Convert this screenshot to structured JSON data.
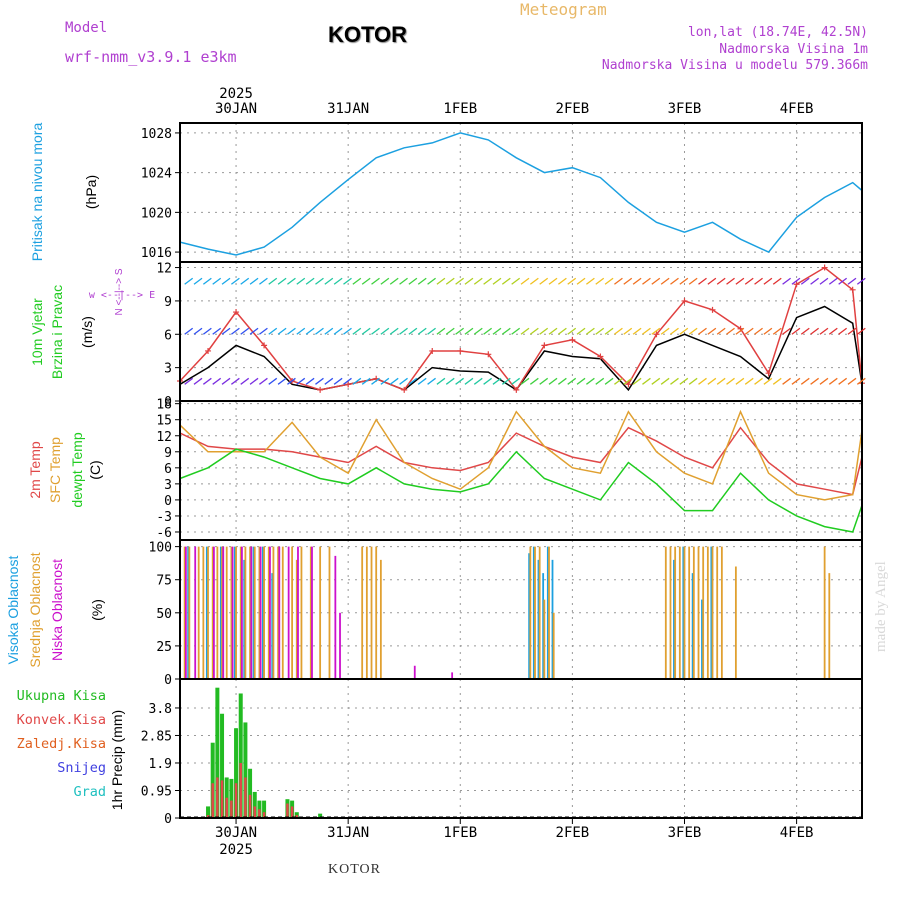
{
  "header": {
    "model_label": "Model",
    "model_name": "wrf-nmm_v3.9.1 e3km",
    "station": "KOTOR",
    "product": "Meteogram",
    "coords": "lon,lat (18.74E, 42.5N)",
    "elevation": "Nadmorska Visina 1m",
    "model_elevation": "Nadmorska Visina u modelu 579.366m",
    "footer_station": "KOTOR",
    "credit": "made by Angel"
  },
  "colors": {
    "pressure": "#1ca0e0",
    "wind_label": "#22cc22",
    "wind_speed": "#000000",
    "gust": "#e04040",
    "temp2m": "#e04848",
    "sfc_temp": "#e0a030",
    "dewpoint": "#20cc20",
    "high_cloud": "#1ca0e0",
    "mid_cloud": "#e0a030",
    "low_cloud": "#cc10cc",
    "total_precip": "#22bb22",
    "conv_precip": "#e04848",
    "frz_precip": "#e06020",
    "snow": "#4040e0",
    "graupel": "#20c0c0",
    "title_orange": "#e8b868",
    "purple": "#b040d0"
  },
  "chart_data": {
    "type": "meteogram",
    "time_axis": {
      "start_hours_before_30jan": 12,
      "end_hours_after_4feb": 14,
      "day_labels": [
        "30JAN",
        "31JAN",
        "1FEB",
        "2FEB",
        "3FEB",
        "4FEB"
      ],
      "year_label": "2025"
    },
    "panels": [
      {
        "id": "pressure",
        "ylabel_title": "Pritisak na nivou mora",
        "ylabel_unit": "(hPa)",
        "ylim": [
          1015,
          1029
        ],
        "yticks": [
          "1016",
          "1020",
          "1024",
          "1028"
        ],
        "series": [
          {
            "name": "MSLP",
            "t": [
              -12,
              -6,
              0,
              6,
              12,
              18,
              24,
              30,
              36,
              42,
              48,
              54,
              60,
              66,
              72,
              78,
              84,
              90,
              96,
              102,
              108,
              114,
              120,
              126,
              132,
              134
            ],
            "v": [
              1017,
              1016.3,
              1015.7,
              1016.5,
              1018.5,
              1021,
              1023.3,
              1025.5,
              1026.5,
              1027,
              1028,
              1027.3,
              1025.5,
              1024,
              1024.5,
              1023.5,
              1021,
              1019,
              1018,
              1019,
              1017.3,
              1016,
              1019.5,
              1021.5,
              1023,
              1022.2
            ]
          }
        ]
      },
      {
        "id": "wind",
        "ylabel_title": "10m Vjetar",
        "ylabel_title2": "Brzina i Pravac",
        "ylabel_unit": "(m/s)",
        "compass": "w <--|--> E",
        "compass_ns": "N <--|--> S",
        "ylim": [
          0,
          12.5
        ],
        "yticks": [
          "0",
          "3",
          "6",
          "9",
          "12"
        ],
        "series": [
          {
            "name": "wind speed",
            "t": [
              -12,
              -6,
              0,
              6,
              12,
              18,
              24,
              30,
              36,
              42,
              48,
              54,
              60,
              66,
              72,
              78,
              84,
              90,
              96,
              102,
              108,
              114,
              120,
              126,
              132,
              134
            ],
            "v": [
              1.5,
              3,
              5,
              4,
              1.5,
              1,
              1.5,
              2,
              1,
              3,
              2.7,
              2.6,
              1,
              4.5,
              4,
              3.8,
              1,
              5,
              6,
              5,
              4,
              2,
              7.5,
              8.5,
              7,
              1.5
            ]
          },
          {
            "name": "gust",
            "t": [
              -12,
              -6,
              0,
              6,
              12,
              18,
              24,
              30,
              36,
              42,
              48,
              54,
              60,
              66,
              72,
              78,
              84,
              90,
              96,
              102,
              108,
              114,
              120,
              126,
              132,
              134
            ],
            "v": [
              1.8,
              4.5,
              8,
              5,
              1.8,
              1,
              1.5,
              2,
              1,
              4.5,
              4.5,
              4.2,
              1,
              5,
              5.5,
              4,
              1.5,
              6,
              9,
              8.2,
              6.5,
              2.5,
              10.5,
              12,
              10,
              1.6
            ]
          }
        ]
      },
      {
        "id": "temperature",
        "ylabel_title": "2m Temp",
        "ylabel_title2": "SFC Temp",
        "ylabel_title3": "dewpt Temp",
        "ylabel_unit": "(C)",
        "ylim": [
          -7.5,
          18.5
        ],
        "yticks": [
          "-6",
          "-3",
          "0",
          "3",
          "6",
          "9",
          "12",
          "15",
          "18"
        ],
        "series": [
          {
            "name": "2m Temp",
            "t": [
              -12,
              -6,
              0,
              6,
              12,
              18,
              24,
              30,
              36,
              42,
              48,
              54,
              60,
              66,
              72,
              78,
              84,
              90,
              96,
              102,
              108,
              114,
              120,
              126,
              132,
              134
            ],
            "v": [
              12.5,
              10,
              9.5,
              9.5,
              9,
              8,
              7,
              10,
              7,
              6,
              5.5,
              7,
              12.5,
              10,
              8,
              7,
              13.5,
              11,
              8,
              6,
              13.5,
              7,
              3,
              2,
              1,
              8
            ]
          },
          {
            "name": "SFC Temp",
            "t": [
              -12,
              -6,
              0,
              6,
              12,
              18,
              24,
              30,
              36,
              42,
              48,
              54,
              60,
              66,
              72,
              78,
              84,
              90,
              96,
              102,
              108,
              114,
              120,
              126,
              132,
              134
            ],
            "v": [
              14,
              9,
              9,
              9,
              14.5,
              8,
              5,
              15,
              7,
              4,
              2,
              6,
              16.5,
              10,
              6,
              5,
              16.5,
              9,
              5,
              3,
              16.5,
              5,
              1,
              0,
              1,
              13
            ]
          },
          {
            "name": "dewpt Temp",
            "t": [
              -12,
              -6,
              0,
              6,
              12,
              18,
              24,
              30,
              36,
              42,
              48,
              54,
              60,
              66,
              72,
              78,
              84,
              90,
              96,
              102,
              108,
              114,
              120,
              126,
              132,
              134
            ],
            "v": [
              4,
              6,
              9.5,
              8,
              6,
              4,
              3,
              6,
              3,
              2,
              1.5,
              3,
              9,
              4,
              2,
              0,
              7,
              3,
              -2,
              -2,
              5,
              0,
              -3,
              -5,
              -6,
              -1
            ]
          }
        ]
      },
      {
        "id": "clouds",
        "ylabel_title": "Visoka Oblacnost",
        "ylabel_title2": "Srednja Oblacnost",
        "ylabel_title3": "Niska Oblacnost",
        "ylabel_unit": "(%)",
        "ylim": [
          0,
          105
        ],
        "yticks": [
          "0",
          "25",
          "50",
          "75",
          "100"
        ],
        "series": [
          {
            "name": "Visoka Oblacnost",
            "t": [
              -10,
              -6,
              -3,
              0,
              2,
              4,
              6,
              8,
              63,
              64,
              65,
              66,
              67,
              68,
              94,
              96,
              98,
              100,
              102
            ],
            "v": [
              100,
              100,
              100,
              100,
              90,
              100,
              100,
              80,
              95,
              100,
              90,
              80,
              100,
              90,
              90,
              100,
              80,
              60,
              100
            ]
          },
          {
            "name": "Srednja Oblacnost",
            "t": [
              -12,
              -11,
              -10,
              -8,
              -7,
              -6,
              -5,
              -4,
              -3,
              -2,
              -1,
              0,
              1,
              2,
              3,
              4,
              5,
              6,
              7,
              8,
              9,
              10,
              12,
              13,
              14,
              16,
              18,
              20,
              27,
              28,
              29,
              30,
              31,
              63,
              64,
              65,
              66,
              67,
              68,
              92,
              93,
              94,
              95,
              96,
              97,
              98,
              99,
              100,
              101,
              102,
              103,
              104,
              107,
              126,
              127
            ],
            "v": [
              100,
              100,
              100,
              100,
              100,
              100,
              100,
              100,
              100,
              100,
              100,
              100,
              100,
              100,
              100,
              100,
              100,
              100,
              100,
              100,
              100,
              100,
              100,
              90,
              100,
              100,
              100,
              100,
              100,
              100,
              100,
              100,
              90,
              100,
              100,
              100,
              60,
              100,
              50,
              100,
              100,
              100,
              100,
              100,
              100,
              100,
              100,
              100,
              100,
              100,
              100,
              100,
              85,
              100,
              80
            ]
          },
          {
            "name": "Niska Oblacnost",
            "t": [
              -11,
              -9,
              -5,
              -3,
              -1,
              1,
              3,
              5,
              7,
              9,
              11,
              13,
              16,
              21,
              22,
              38,
              46
            ],
            "v": [
              100,
              100,
              100,
              100,
              100,
              100,
              100,
              100,
              100,
              100,
              100,
              100,
              100,
              93,
              50,
              10,
              5
            ]
          }
        ]
      },
      {
        "id": "precip",
        "ylabel_title": "1hr Precip",
        "ylabel_unit": "(mm)",
        "ylim": [
          0,
          4.8
        ],
        "yticks": [
          "0",
          "0.95",
          "1.9",
          "2.85",
          "3.8"
        ],
        "legend": [
          "Ukupna Kisa",
          "Konvek.Kisa",
          "Zaledj.Kisa",
          "Snijeg",
          "Grad"
        ],
        "series": [
          {
            "name": "Ukupna Kisa",
            "t": [
              -6,
              -5,
              -4,
              -3,
              -2,
              -1,
              0,
              1,
              2,
              3,
              4,
              5,
              6,
              11,
              12,
              13,
              18
            ],
            "v": [
              0.4,
              2.6,
              4.5,
              3.6,
              1.4,
              1.35,
              3.1,
              4.3,
              3.3,
              1.7,
              0.9,
              0.6,
              0.6,
              0.65,
              0.6,
              0.2,
              0.15
            ]
          },
          {
            "name": "Konvek.Kisa",
            "t": [
              -6,
              -5,
              -4,
              -3,
              -2,
              -1,
              0,
              1,
              2,
              3,
              4,
              5,
              6,
              11,
              12,
              13,
              18
            ],
            "v": [
              0.1,
              1.2,
              1.4,
              1.3,
              0.7,
              0.6,
              1.2,
              1.9,
              1.4,
              0.8,
              0.4,
              0.3,
              0.2,
              0.5,
              0.4,
              0.1,
              0
            ]
          }
        ]
      }
    ]
  }
}
